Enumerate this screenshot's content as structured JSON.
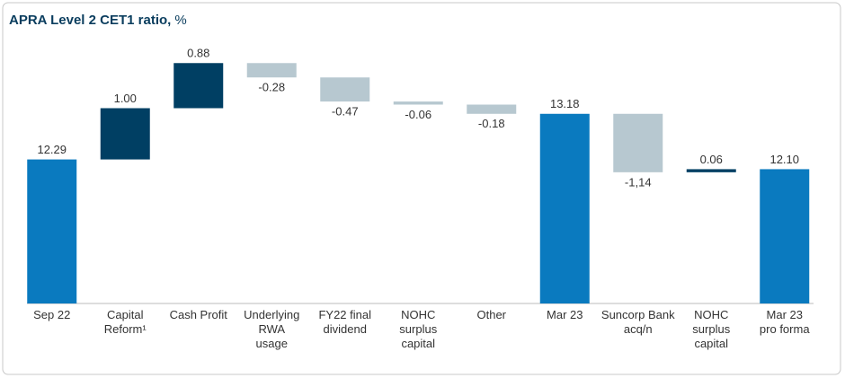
{
  "chart_data": {
    "type": "waterfall",
    "title": "APRA Level 2 CET1 ratio,",
    "y_unit": "%",
    "categories": [
      "Sep 22",
      "Capital\nReform¹",
      "Cash Profit",
      "Underlying\nRWA\nusage",
      "FY22 final\ndividend",
      "NOHC\nsurplus\ncapital",
      "Other",
      "Mar 23",
      "Suncorp Bank\nacq/n",
      "NOHC\nsurplus\ncapital",
      "Mar 23\npro forma"
    ],
    "measure": [
      "absolute",
      "relative",
      "relative",
      "relative",
      "relative",
      "relative",
      "relative",
      "absolute",
      "relative",
      "relative",
      "absolute"
    ],
    "values": [
      12.29,
      1.0,
      0.88,
      -0.28,
      -0.47,
      -0.06,
      -0.18,
      13.18,
      -1.14,
      0.06,
      12.1
    ],
    "value_labels": [
      "12.29",
      "1.00",
      "0.88",
      "-0.28",
      "-0.47",
      "-0.06",
      "-0.18",
      "13.18",
      "-1,14",
      "0.06",
      "12.10"
    ],
    "colors": {
      "absolute": "#0a7abf",
      "increase": "#003f63",
      "decrease": "#b7c8d0"
    },
    "ylim": [
      9.48,
      14.7
    ]
  }
}
